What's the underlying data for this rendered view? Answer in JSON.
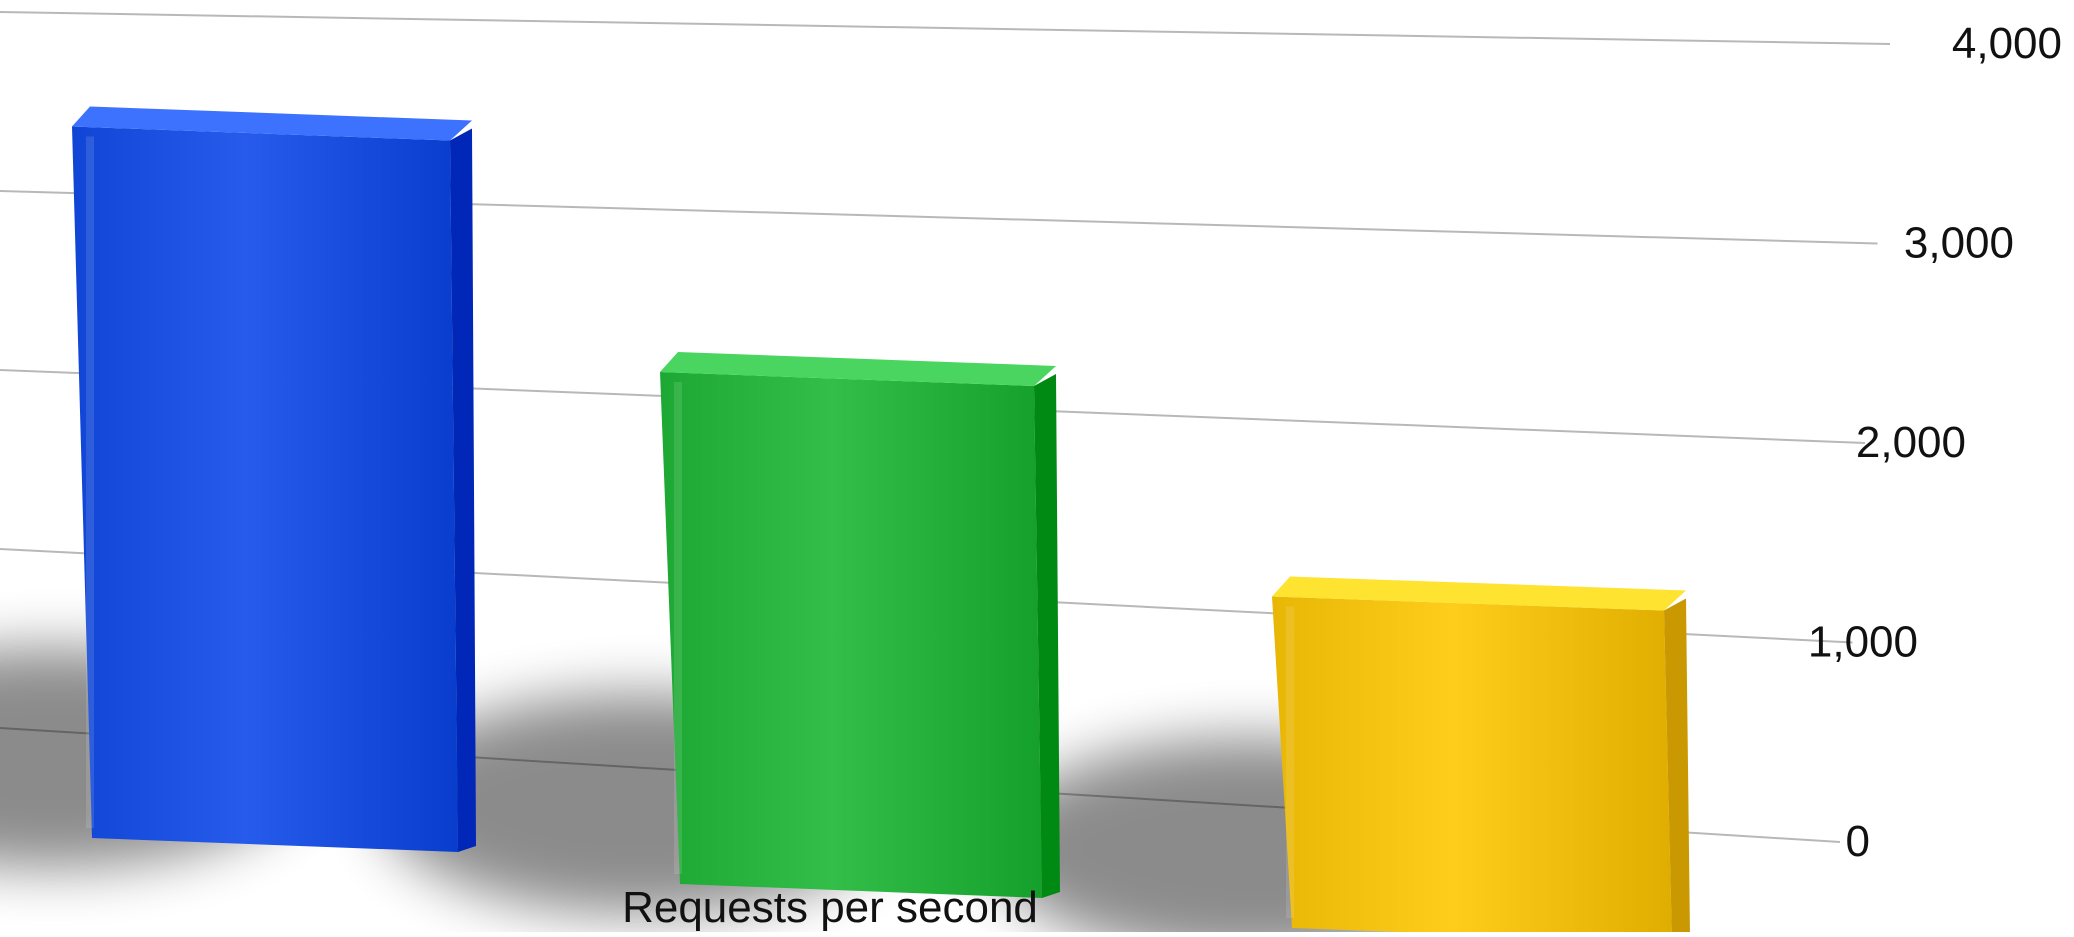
{
  "chart_data": {
    "type": "bar",
    "categories": [
      "",
      "",
      ""
    ],
    "values": [
      3850,
      2800,
      1850
    ],
    "colors": [
      "#1a4fe0",
      "#26b23c",
      "#f2c00e"
    ],
    "xlabel": "Requests per second",
    "ylabel": "",
    "title": "",
    "ylim": [
      0,
      4000
    ],
    "yticks": [
      0,
      1000,
      2000,
      3000,
      4000
    ],
    "ytick_labels": [
      "0",
      "1,000",
      "2,000",
      "3,000",
      "4,000"
    ],
    "grid": true,
    "style": "3d-perspective",
    "legend": "none"
  }
}
